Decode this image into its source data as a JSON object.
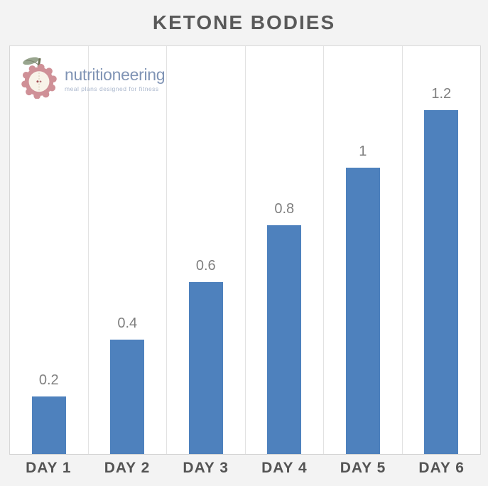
{
  "title": "KETONE BODIES",
  "logo": {
    "name": "nutritioneering",
    "tagline": "meal plans designed for fitness"
  },
  "chart_data": {
    "type": "bar",
    "title": "KETONE BODIES",
    "categories": [
      "DAY 1",
      "DAY 2",
      "DAY 3",
      "DAY 4",
      "DAY 5",
      "DAY 6"
    ],
    "values": [
      0.2,
      0.4,
      0.6,
      0.8,
      1,
      1.2
    ],
    "value_labels": [
      "0.2",
      "0.4",
      "0.6",
      "0.8",
      "1",
      "1.2"
    ],
    "xlabel": "",
    "ylabel": "",
    "ylim": [
      0,
      1.43
    ],
    "grid": "vertical-column-separators",
    "legend": "none",
    "bar_color": "#4e81bd"
  },
  "colors": {
    "page_background": "#f3f3f3",
    "plot_background": "#ffffff",
    "bar": "#4e81bd",
    "gridline": "#e2e2e2",
    "border": "#d8d8d8",
    "title_text": "#595959",
    "value_label_text": "#7f7f7f",
    "axis_label_text": "#545454",
    "logo_apple": "#cf9097",
    "logo_apple_inner": "#f8f3e9",
    "logo_leaf": "#98a58e",
    "logo_name_text": "#8094b5",
    "logo_tagline_text": "#a9b6cc"
  }
}
